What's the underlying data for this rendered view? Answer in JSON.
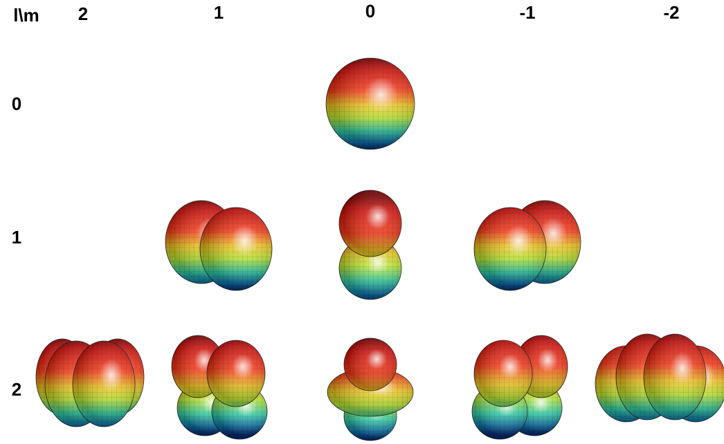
{
  "header": {
    "corner": "l\\m",
    "columns": [
      "2",
      "1",
      "0",
      "-1",
      "-2"
    ]
  },
  "rows": [
    "0",
    "1",
    "2"
  ]
}
